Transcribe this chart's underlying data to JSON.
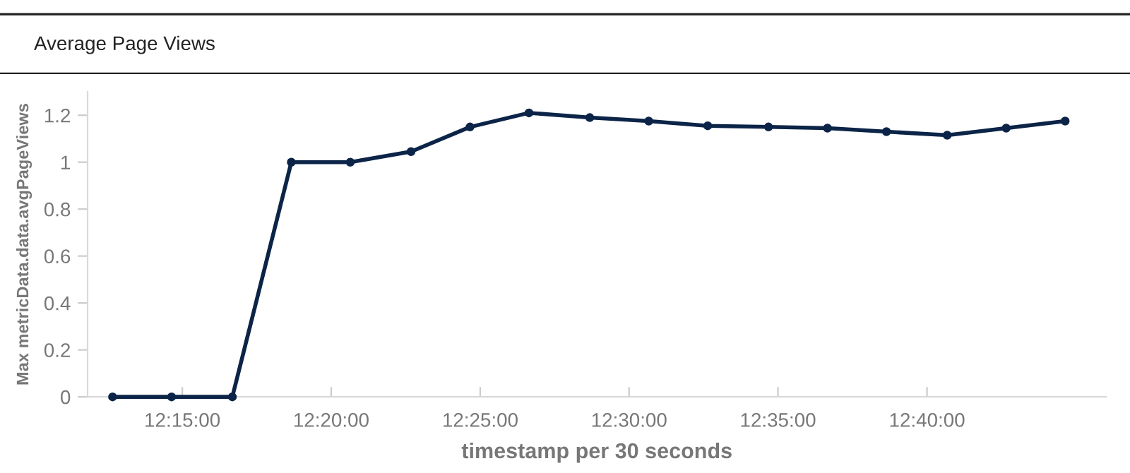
{
  "chart_data": {
    "type": "line",
    "title": "Average Page Views",
    "xlabel": "timestamp per 30 seconds",
    "ylabel": "Max metricData.data.avgPageViews",
    "x": [
      12.211,
      12.244,
      12.278,
      12.311,
      12.344,
      12.378,
      12.411,
      12.444,
      12.478,
      12.511,
      12.544,
      12.578,
      12.611,
      12.644,
      12.678,
      12.711,
      12.744
    ],
    "series": [
      {
        "color": "#0b2447",
        "values": [
          0,
          0,
          0,
          1.0,
          1.0,
          1.045,
          1.15,
          1.21,
          1.19,
          1.175,
          1.155,
          1.15,
          1.145,
          1.13,
          1.115,
          1.145,
          1.175
        ]
      }
    ],
    "xlim": [
      12.197,
      12.767
    ],
    "xticks": [
      {
        "value": 12.25,
        "label": "12:15:00"
      },
      {
        "value": 12.3333,
        "label": "12:20:00"
      },
      {
        "value": 12.4167,
        "label": "12:25:00"
      },
      {
        "value": 12.5,
        "label": "12:30:00"
      },
      {
        "value": 12.5833,
        "label": "12:35:00"
      },
      {
        "value": 12.6667,
        "label": "12:40:00"
      }
    ],
    "ylim": [
      0,
      1.3
    ],
    "yticks": [
      0,
      0.2,
      0.4,
      0.6,
      0.8,
      1,
      1.2
    ],
    "grid": false,
    "legend": false,
    "marker": "circle",
    "line_style": "solid"
  }
}
